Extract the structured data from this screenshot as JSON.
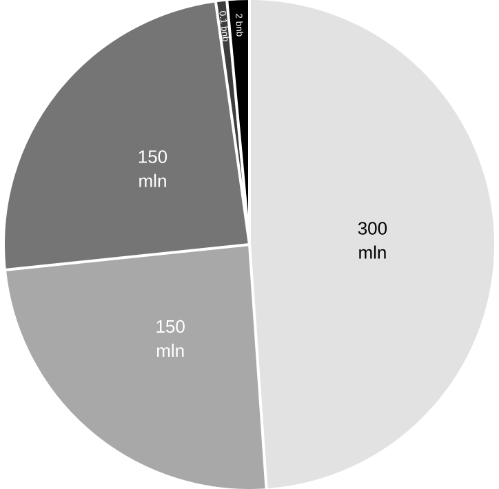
{
  "chart_data": {
    "type": "pie",
    "title": "",
    "start": "top",
    "direction": "clockwise",
    "slices": [
      {
        "value": 300,
        "label_lines": [
          "300",
          "mln"
        ],
        "color": "#e2e2e2",
        "label_color": "#000000"
      },
      {
        "value": 150,
        "label_lines": [
          "150",
          "mln"
        ],
        "color": "#a8a8a8",
        "label_color": "#ffffff"
      },
      {
        "value": 150,
        "label_lines": [
          "150",
          "mln"
        ],
        "color": "#757575",
        "label_color": "#ffffff"
      },
      {
        "value": 4.5,
        "label_lines": [
          "0.1 bnb"
        ],
        "color": "#3d3d3d",
        "label_color": "#ffffff"
      },
      {
        "value": 9,
        "label_lines": [
          "2 bnb"
        ],
        "color": "#000000",
        "label_color": "#ffffff"
      }
    ]
  }
}
